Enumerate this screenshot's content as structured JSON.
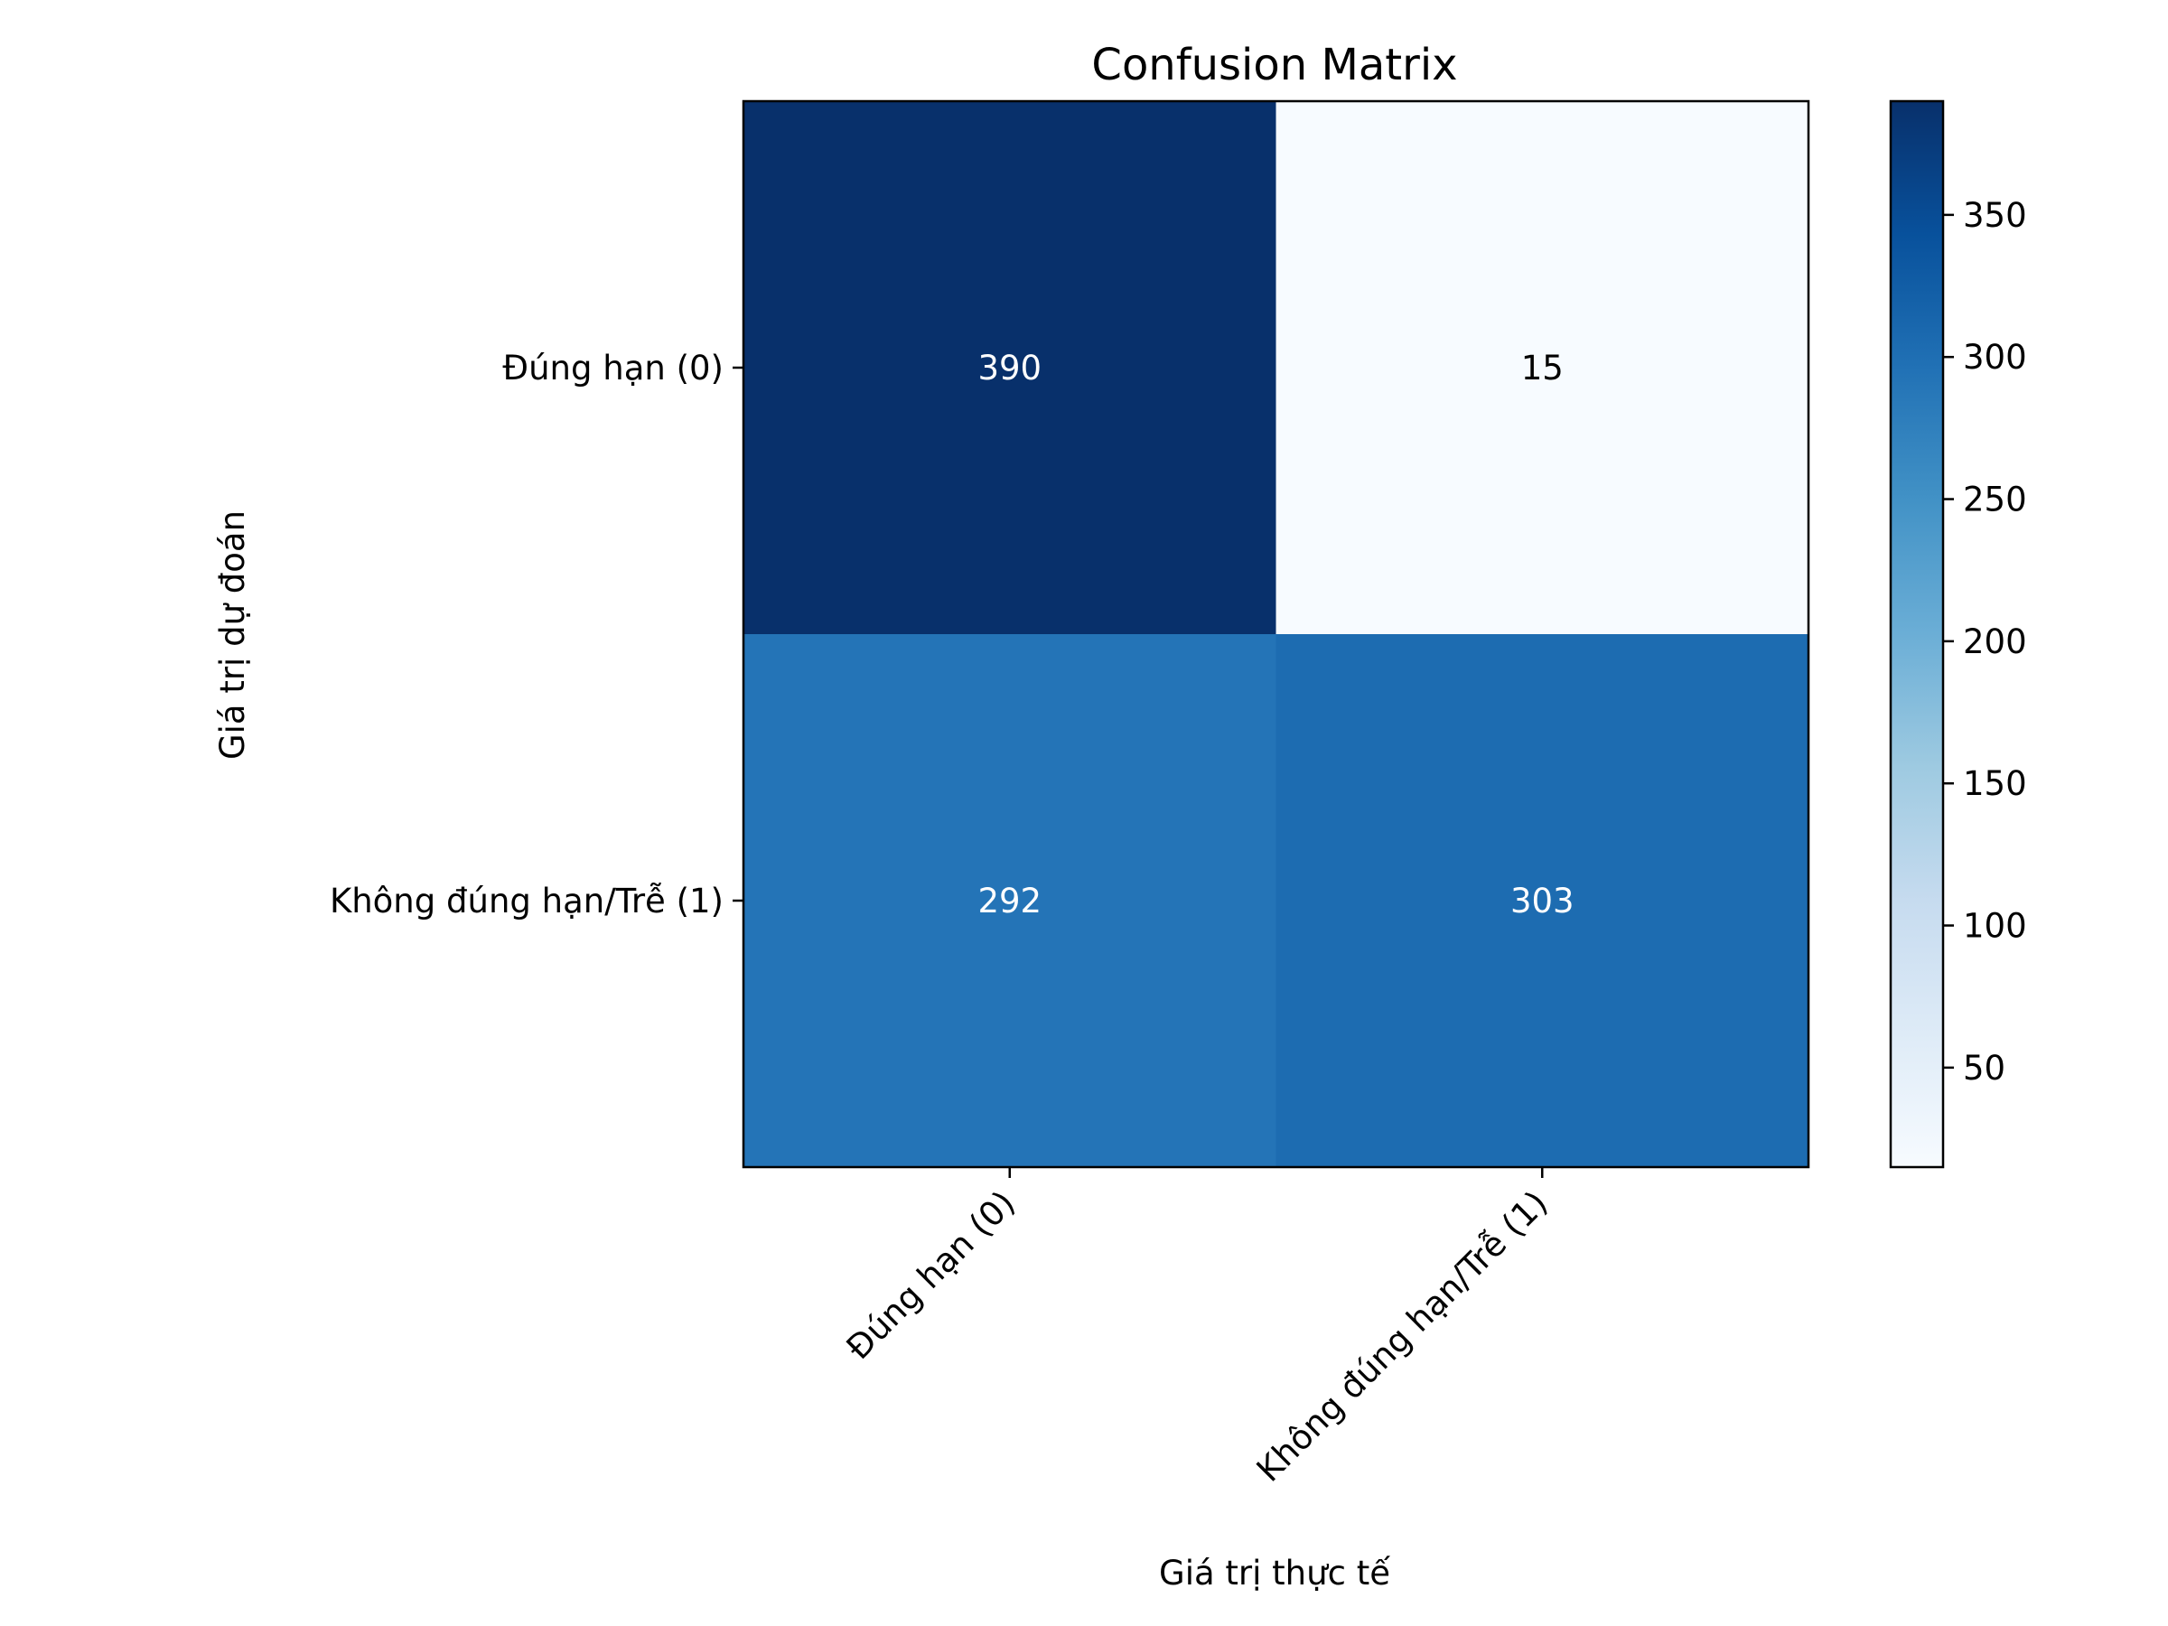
{
  "chart_data": {
    "type": "heatmap",
    "title": "Confusion Matrix",
    "xlabel": "Giá trị thực tế",
    "ylabel": "Giá trị dự đoán",
    "x_categories": [
      "Đúng hạn (0)",
      "Không đúng hạn/Trễ (1)"
    ],
    "y_categories": [
      "Đúng hạn (0)",
      "Không đúng hạn/Trễ (1)"
    ],
    "values": [
      [
        390,
        15
      ],
      [
        292,
        303
      ]
    ],
    "colormap": "Blues",
    "colorbar": {
      "range": [
        15,
        390
      ],
      "ticks": [
        50,
        100,
        150,
        200,
        250,
        300,
        350
      ]
    },
    "grid": false
  }
}
